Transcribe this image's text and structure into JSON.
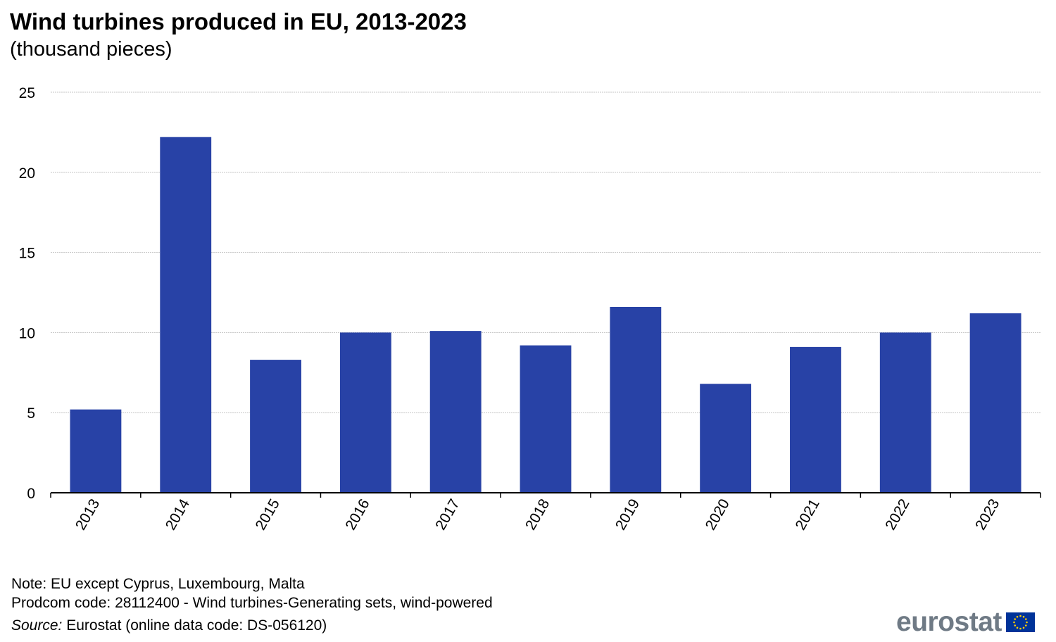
{
  "chart_data": {
    "type": "bar",
    "title": "Wind turbines produced in EU, 2013-2023",
    "subtitle": "(thousand pieces)",
    "categories": [
      "2013",
      "2014",
      "2015",
      "2016",
      "2017",
      "2018",
      "2019",
      "2020",
      "2021",
      "2022",
      "2023"
    ],
    "values": [
      5.2,
      22.2,
      8.3,
      10.0,
      10.1,
      9.2,
      11.6,
      6.8,
      9.1,
      10.0,
      11.2
    ],
    "ylim": [
      0,
      25
    ],
    "yticks": [
      0,
      5,
      10,
      15,
      20,
      25
    ],
    "grid": true,
    "bar_color": "#2842a6",
    "grid_color": "#c4c4c4"
  },
  "footer": {
    "note": "Note: EU except Cyprus, Luxembourg, Malta",
    "prodcom": "Prodcom code: 28112400  - Wind turbines-Generating sets, wind-powered",
    "source_label": "Source:",
    "source_text": " Eurostat (online data code: DS-056120)"
  },
  "logo": {
    "text": "eurostat",
    "flag_color": "#003399",
    "star_color": "#ffcc00"
  }
}
